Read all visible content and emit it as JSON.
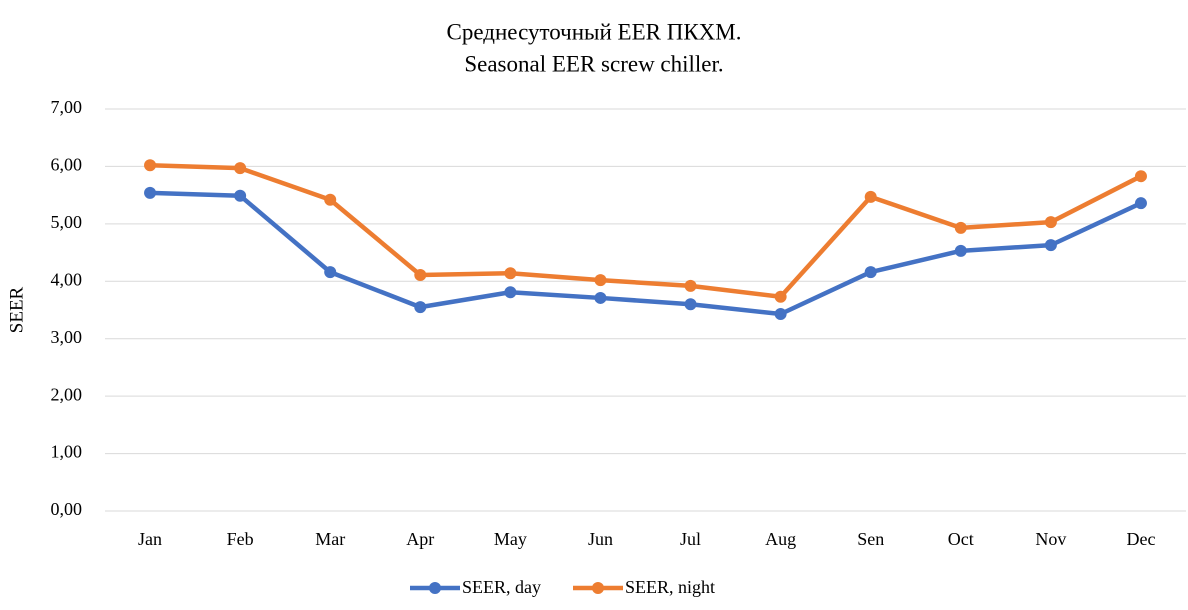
{
  "chart_data": {
    "type": "line",
    "title": [
      "Среднесуточный EER ПКХМ.",
      "Seasonal EER screw chiller."
    ],
    "y_label": "SEER",
    "categories": [
      "Jan",
      "Feb",
      "Mar",
      "Apr",
      "May",
      "Jun",
      "Jul",
      "Aug",
      "Sen",
      "Oct",
      "Nov",
      "Dec"
    ],
    "series": [
      {
        "name": "SEER, day",
        "color": "#4472c4",
        "values": [
          5.54,
          5.49,
          4.16,
          3.55,
          3.81,
          3.71,
          3.6,
          3.43,
          4.16,
          4.53,
          4.63,
          5.36
        ]
      },
      {
        "name": "SEER, night",
        "color": "#ed7d31",
        "values": [
          6.02,
          5.97,
          5.42,
          4.11,
          4.14,
          4.02,
          3.92,
          3.73,
          5.47,
          4.93,
          5.03,
          5.83
        ]
      }
    ],
    "ylim": [
      0,
      7
    ],
    "yticks": [
      {
        "value": 0,
        "label": "0,00"
      },
      {
        "value": 1,
        "label": "1,00"
      },
      {
        "value": 2,
        "label": "2,00"
      },
      {
        "value": 3,
        "label": "3,00"
      },
      {
        "value": 4,
        "label": "4,00"
      },
      {
        "value": 5,
        "label": "5,00"
      },
      {
        "value": 6,
        "label": "6,00"
      },
      {
        "value": 7,
        "label": "7,00"
      }
    ],
    "grid": true,
    "legend": "bottom"
  }
}
